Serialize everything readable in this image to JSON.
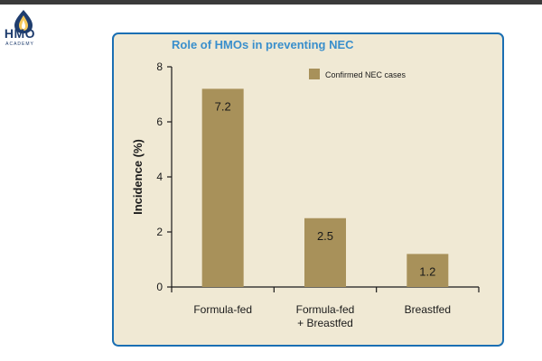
{
  "logo": {
    "name": "HMO",
    "subtitle": "ACADEMY",
    "icon": "droplet-icon"
  },
  "chart_data": {
    "type": "bar",
    "title": "Role of HMOs in preventing NEC",
    "categories": [
      "Formula-fed",
      "Formula-fed\n+ Breastfed",
      "Breastfed"
    ],
    "series": [
      {
        "name": "Confirmed NEC cases",
        "values": [
          7.2,
          2.5,
          1.2
        ],
        "color": "#a8915a"
      }
    ],
    "data_labels": [
      "7.2",
      "2.5",
      "1.2"
    ],
    "ylabel": "Incidence (%)",
    "xlabel": "",
    "ylim": [
      0,
      8
    ],
    "yticks": [
      0,
      2,
      4,
      6,
      8
    ],
    "legend_position": "top-right",
    "grid": false,
    "colors": {
      "background": "#f0e9d4",
      "border": "#1b6fb3",
      "title": "#3a8fcc"
    }
  }
}
